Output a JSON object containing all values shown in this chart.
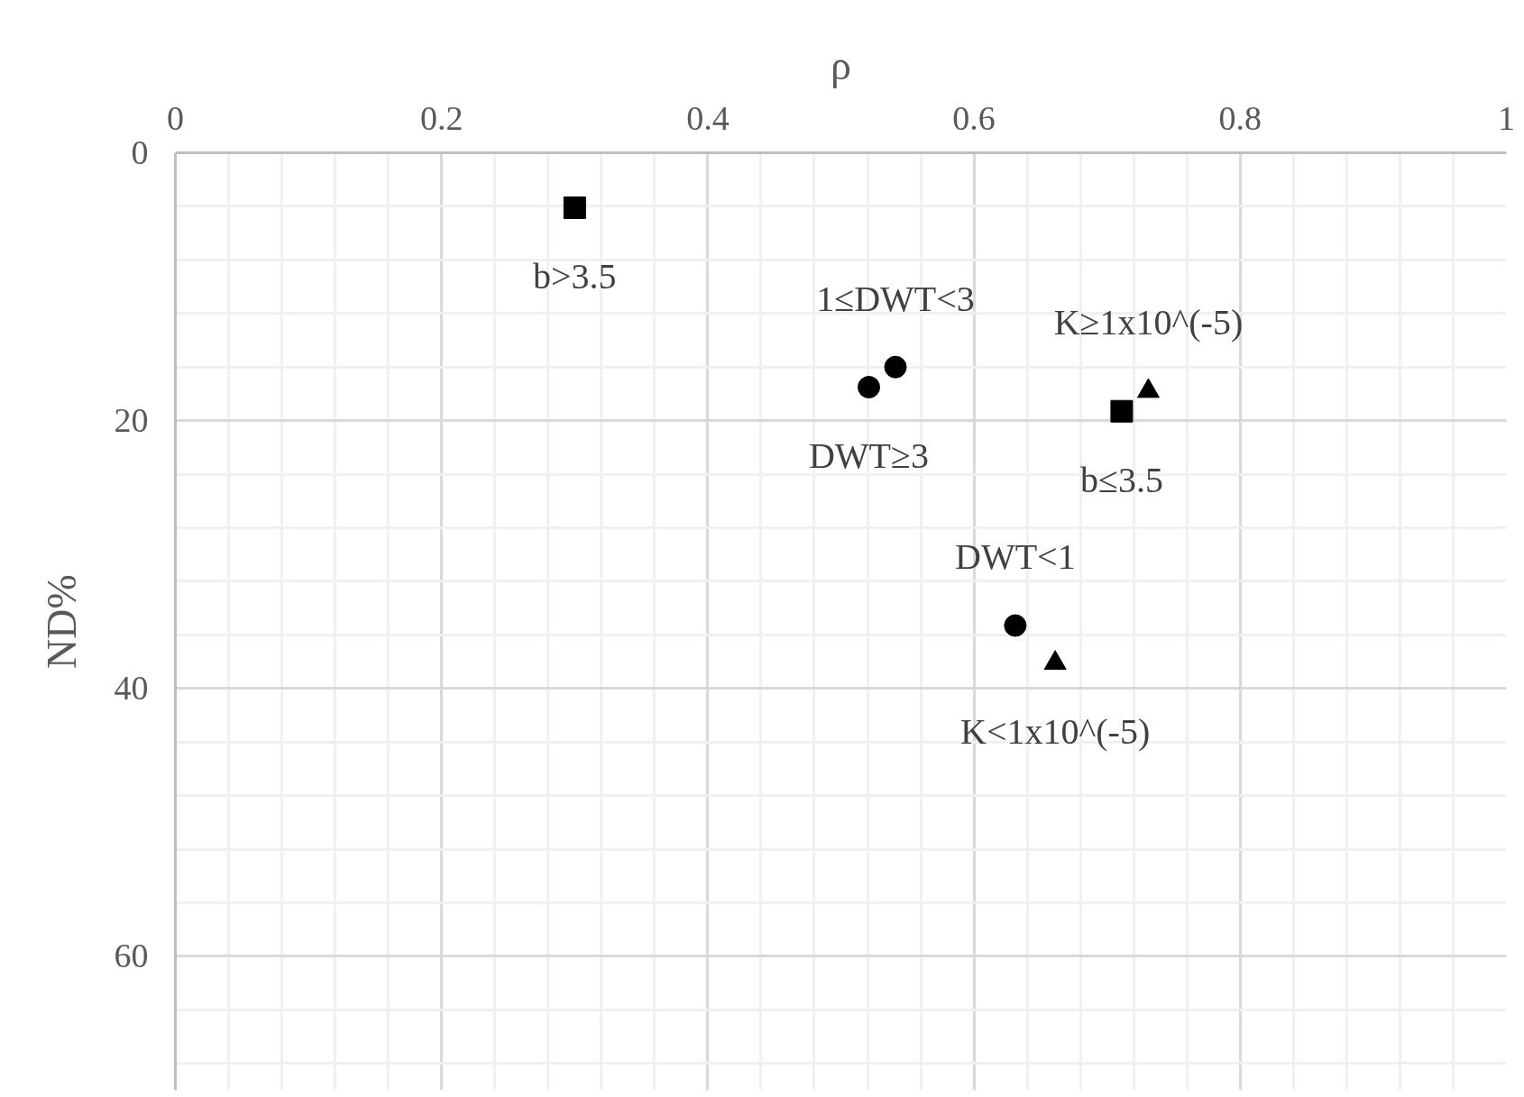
{
  "chart_data": {
    "type": "scatter",
    "xlabel": "ρ",
    "ylabel": "ND%",
    "xlim": [
      0,
      1
    ],
    "ylim": [
      70,
      0
    ],
    "xticks": [
      0,
      {
        "value": 0.04,
        "label": null
      },
      {
        "value": 0.08,
        "label": null
      },
      {
        "value": 0.12,
        "label": null
      },
      {
        "value": 0.16,
        "label": null
      },
      0.2,
      {
        "value": 0.24,
        "label": null
      },
      {
        "value": 0.28,
        "label": null
      },
      {
        "value": 0.32,
        "label": null
      },
      {
        "value": 0.36,
        "label": null
      },
      0.4,
      {
        "value": 0.44,
        "label": null
      },
      {
        "value": 0.48,
        "label": null
      },
      {
        "value": 0.52,
        "label": null
      },
      {
        "value": 0.56,
        "label": null
      },
      0.6,
      {
        "value": 0.64,
        "label": null
      },
      {
        "value": 0.68,
        "label": null
      },
      {
        "value": 0.72,
        "label": null
      },
      {
        "value": 0.76,
        "label": null
      },
      0.8,
      {
        "value": 0.84,
        "label": null
      },
      {
        "value": 0.88,
        "label": null
      },
      {
        "value": 0.92,
        "label": null
      },
      {
        "value": 0.96,
        "label": null
      },
      1
    ],
    "yticks": [
      0,
      {
        "value": 4,
        "label": null
      },
      {
        "value": 8,
        "label": null
      },
      {
        "value": 12,
        "label": null
      },
      {
        "value": 16,
        "label": null
      },
      20,
      {
        "value": 24,
        "label": null
      },
      {
        "value": 28,
        "label": null
      },
      {
        "value": 32,
        "label": null
      },
      {
        "value": 36,
        "label": null
      },
      40,
      {
        "value": 44,
        "label": null
      },
      {
        "value": 48,
        "label": null
      },
      {
        "value": 52,
        "label": null
      },
      {
        "value": 56,
        "label": null
      },
      60,
      {
        "value": 64,
        "label": null
      },
      {
        "value": 68,
        "label": null
      }
    ],
    "grid": true,
    "series": [
      {
        "color": "#000000",
        "marker": "square",
        "x": [
          0.3,
          0.711
        ],
        "values": [
          4.1,
          19.3
        ]
      },
      {
        "color": "#000000",
        "marker": "circle",
        "x": [
          0.541,
          0.521,
          0.631
        ],
        "values": [
          16.0,
          17.5,
          35.3
        ]
      },
      {
        "color": "#000000",
        "marker": "triangle",
        "x": [
          0.731,
          0.661
        ],
        "values": [
          17.8,
          38.1
        ]
      }
    ],
    "annotations": [
      {
        "text": "b>3.5",
        "x": 0.3,
        "y": 4.1
      },
      {
        "text": "1≤DWT<3",
        "x": 0.541,
        "y": 16.0
      },
      {
        "text": "DWT≥3",
        "x": 0.521,
        "y": 17.5
      },
      {
        "text": "K≥1x10^(-5)",
        "x": 0.731,
        "y": 17.8
      },
      {
        "text": "b≤3.5",
        "x": 0.711,
        "y": 19.3
      },
      {
        "text": "DWT<1",
        "x": 0.631,
        "y": 35.3
      },
      {
        "text": "K<1x10^(-5)",
        "x": 0.661,
        "y": 38.1
      }
    ]
  }
}
